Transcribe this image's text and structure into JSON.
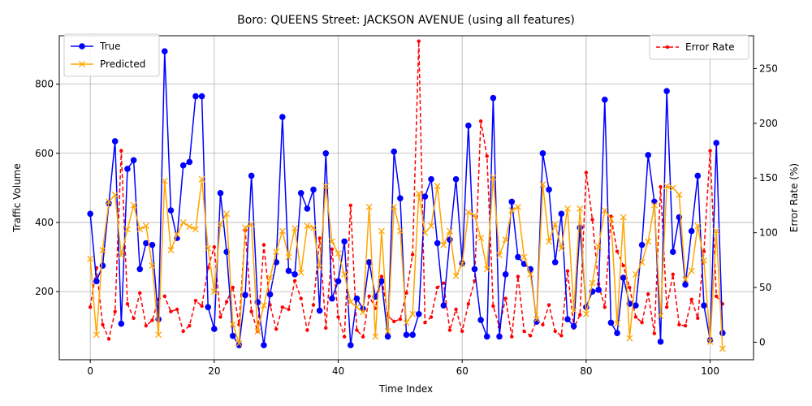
{
  "chart_data": {
    "type": "line",
    "title": "Boro: QUEENS Street: JACKSON AVENUE (using all features)",
    "xlabel": "Time Index",
    "ylabel": "Traffic Volume",
    "y2label": "Error Rate (%)",
    "xlim": [
      -5,
      107
    ],
    "ylim": [
      3,
      940
    ],
    "y2lim": [
      -16,
      280
    ],
    "xticks": [
      0,
      20,
      40,
      60,
      80,
      100
    ],
    "yticks": [
      200,
      400,
      600,
      800
    ],
    "y2ticks": [
      0,
      50,
      100,
      150,
      200,
      250
    ],
    "grid": true,
    "legend_left": "upper-left",
    "legend_right": "upper-right",
    "x": [
      0,
      1,
      2,
      3,
      4,
      5,
      6,
      7,
      8,
      9,
      10,
      11,
      12,
      13,
      14,
      15,
      16,
      17,
      18,
      19,
      20,
      21,
      22,
      23,
      24,
      25,
      26,
      27,
      28,
      29,
      30,
      31,
      32,
      33,
      34,
      35,
      36,
      37,
      38,
      39,
      40,
      41,
      42,
      43,
      44,
      45,
      46,
      47,
      48,
      49,
      50,
      51,
      52,
      53,
      54,
      55,
      56,
      57,
      58,
      59,
      60,
      61,
      62,
      63,
      64,
      65,
      66,
      67,
      68,
      69,
      70,
      71,
      72,
      73,
      74,
      75,
      76,
      77,
      78,
      79,
      80,
      81,
      82,
      83,
      84,
      85,
      86,
      87,
      88,
      89,
      90,
      91,
      92,
      93,
      94,
      95,
      96,
      97,
      98,
      99,
      100,
      101,
      102
    ],
    "series": [
      {
        "name": "True",
        "axis": "left",
        "color": "#0000ff",
        "marker": "circle",
        "linestyle": "solid",
        "values": [
          425,
          230,
          275,
          455,
          635,
          107,
          555,
          580,
          265,
          340,
          335,
          120,
          895,
          435,
          355,
          565,
          575,
          765,
          765,
          155,
          92,
          485,
          315,
          72,
          45,
          190,
          535,
          170,
          45,
          192,
          285,
          705,
          260,
          250,
          485,
          440,
          495,
          145,
          600,
          180,
          230,
          345,
          45,
          180,
          150,
          285,
          185,
          230,
          70,
          605,
          470,
          75,
          75,
          135,
          475,
          525,
          340,
          160,
          350,
          525,
          282,
          680,
          265,
          118,
          70,
          760,
          70,
          250,
          460,
          300,
          280,
          265,
          113,
          600,
          495,
          285,
          425,
          120,
          100,
          385,
          155,
          200,
          205,
          755,
          110,
          80,
          240,
          165,
          160,
          335,
          595,
          460,
          55,
          780,
          315,
          415,
          220,
          375,
          535,
          160,
          60,
          630,
          80
        ]
      },
      {
        "name": "Predicted",
        "axis": "left",
        "color": "#ffa500",
        "marker": "x",
        "linestyle": "solid",
        "values": [
          295,
          75,
          320,
          460,
          480,
          305,
          380,
          450,
          380,
          390,
          275,
          75,
          520,
          320,
          365,
          400,
          388,
          380,
          525,
          325,
          200,
          395,
          425,
          105,
          50,
          385,
          395,
          85,
          160,
          240,
          315,
          375,
          300,
          383,
          255,
          390,
          385,
          270,
          505,
          345,
          310,
          250,
          170,
          155,
          140,
          445,
          70,
          375,
          85,
          445,
          375,
          110,
          135,
          483,
          370,
          390,
          505,
          335,
          375,
          245,
          280,
          430,
          420,
          355,
          265,
          530,
          305,
          350,
          435,
          445,
          300,
          250,
          120,
          510,
          345,
          395,
          325,
          440,
          145,
          440,
          135,
          225,
          330,
          435,
          410,
          108,
          415,
          65,
          250,
          285,
          345,
          450,
          130,
          505,
          500,
          480,
          235,
          260,
          390,
          290,
          55,
          375,
          35
        ]
      },
      {
        "name": "Error Rate",
        "axis": "right",
        "color": "#ff0000",
        "marker": "dot",
        "linestyle": "dashed",
        "values": [
          32,
          68,
          16,
          3,
          28,
          175,
          35,
          22,
          45,
          15,
          20,
          39,
          42,
          28,
          30,
          10,
          15,
          38,
          33,
          68,
          87,
          23,
          37,
          50,
          16,
          102,
          28,
          10,
          89,
          34,
          12,
          32,
          30,
          56,
          40,
          11,
          34,
          95,
          13,
          85,
          23,
          5,
          125,
          11,
          5,
          42,
          31,
          60,
          24,
          19,
          21,
          45,
          80,
          275,
          18,
          23,
          50,
          54,
          11,
          30,
          10,
          35,
          56,
          202,
          170,
          33,
          14,
          40,
          5,
          60,
          10,
          6,
          20,
          16,
          34,
          10,
          6,
          65,
          13,
          25,
          155,
          112,
          53,
          32,
          115,
          83,
          70,
          50,
          23,
          18,
          44,
          8,
          142,
          32,
          62,
          16,
          15,
          39,
          22,
          83,
          175,
          42,
          35
        ]
      }
    ]
  }
}
